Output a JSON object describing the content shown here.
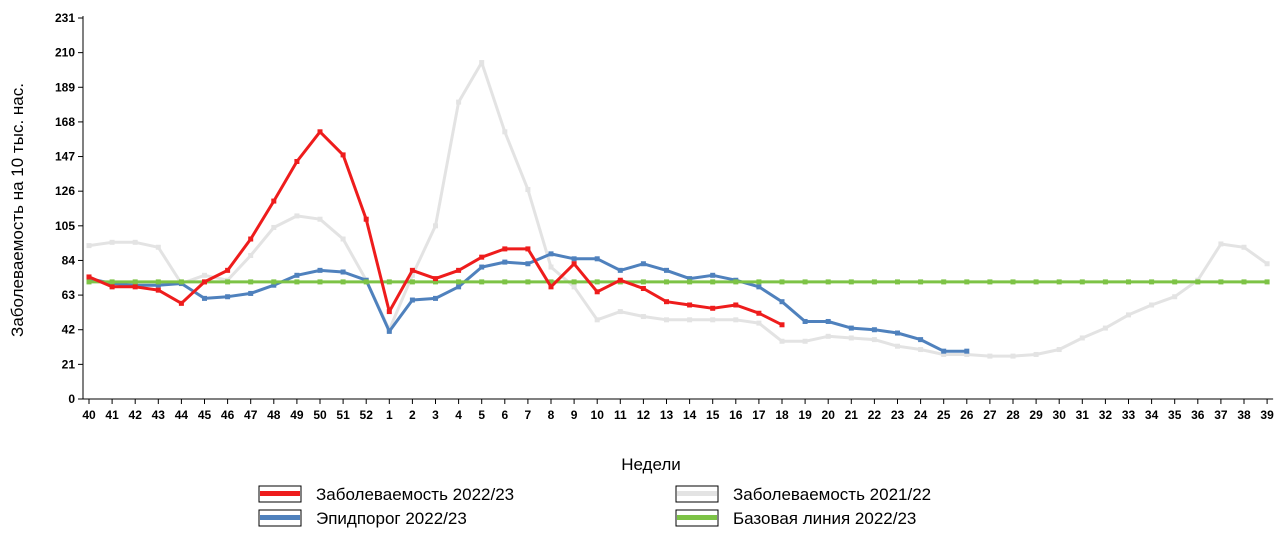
{
  "chart_data": {
    "type": "line",
    "title": "",
    "xlabel": "Недели",
    "ylabel": "Заболеваемость на 10 тыс. нас.",
    "ylim": [
      0,
      231
    ],
    "yticks": [
      0,
      21,
      42,
      63,
      84,
      105,
      126,
      147,
      168,
      189,
      210,
      231
    ],
    "categories": [
      "40",
      "41",
      "42",
      "43",
      "44",
      "45",
      "46",
      "47",
      "48",
      "49",
      "50",
      "51",
      "52",
      "1",
      "2",
      "3",
      "4",
      "5",
      "6",
      "7",
      "8",
      "9",
      "10",
      "11",
      "12",
      "13",
      "14",
      "15",
      "16",
      "17",
      "18",
      "19",
      "20",
      "21",
      "22",
      "23",
      "24",
      "25",
      "26",
      "27",
      "28",
      "29",
      "30",
      "31",
      "32",
      "33",
      "34",
      "35",
      "36",
      "37",
      "38",
      "39"
    ],
    "grid": false,
    "legend_position": "bottom",
    "series": [
      {
        "name": "Заболеваемость 2021/22",
        "color": "#e3e3e3",
        "values": [
          93,
          95,
          95,
          92,
          70,
          75,
          72,
          87,
          104,
          111,
          109,
          97,
          72,
          42,
          75,
          105,
          180,
          204,
          162,
          127,
          80,
          68,
          48,
          53,
          50,
          48,
          48,
          48,
          48,
          46,
          35,
          35,
          38,
          37,
          36,
          32,
          30,
          27,
          27,
          26,
          26,
          27,
          30,
          37,
          43,
          51,
          57,
          62,
          72,
          94,
          92,
          82
        ]
      },
      {
        "name": "Эпидпорог 2022/23",
        "color": "#4f81bd",
        "values": [
          73,
          70,
          69,
          69,
          70,
          61,
          62,
          64,
          69,
          75,
          78,
          77,
          72,
          41,
          60,
          61,
          68,
          80,
          83,
          82,
          88,
          85,
          85,
          78,
          82,
          78,
          73,
          75,
          72,
          68,
          59,
          47,
          47,
          43,
          42,
          40,
          36,
          29,
          29,
          null,
          null,
          null,
          null,
          null,
          null,
          null,
          null,
          null,
          null,
          null,
          null,
          null
        ]
      },
      {
        "name": "Базовая линия 2022/23",
        "color": "#7dc346",
        "values": [
          71,
          71,
          71,
          71,
          71,
          71,
          71,
          71,
          71,
          71,
          71,
          71,
          71,
          71,
          71,
          71,
          71,
          71,
          71,
          71,
          71,
          71,
          71,
          71,
          71,
          71,
          71,
          71,
          71,
          71,
          71,
          71,
          71,
          71,
          71,
          71,
          71,
          71,
          71,
          71,
          71,
          71,
          71,
          71,
          71,
          71,
          71,
          71,
          71,
          71,
          71,
          71
        ]
      },
      {
        "name": "Заболеваемость 2022/23",
        "color": "#ee1c1c",
        "values": [
          74,
          68,
          68,
          66,
          58,
          71,
          78,
          97,
          120,
          144,
          162,
          148,
          109,
          53,
          78,
          73,
          78,
          86,
          91,
          91,
          68,
          82,
          65,
          72,
          67,
          59,
          57,
          55,
          57,
          52,
          45,
          null,
          null,
          null,
          null,
          null,
          null,
          null,
          null,
          null,
          null,
          null,
          null,
          null,
          null,
          null,
          null,
          null,
          null,
          null,
          null,
          null
        ]
      }
    ],
    "legend": [
      {
        "label": "Заболеваемость 2022/23",
        "color": "#ee1c1c"
      },
      {
        "label": "Заболеваемость 2021/22",
        "color": "#e3e3e3"
      },
      {
        "label": "Эпидпорог 2022/23",
        "color": "#4f81bd"
      },
      {
        "label": "Базовая линия 2022/23",
        "color": "#7dc346"
      }
    ]
  }
}
